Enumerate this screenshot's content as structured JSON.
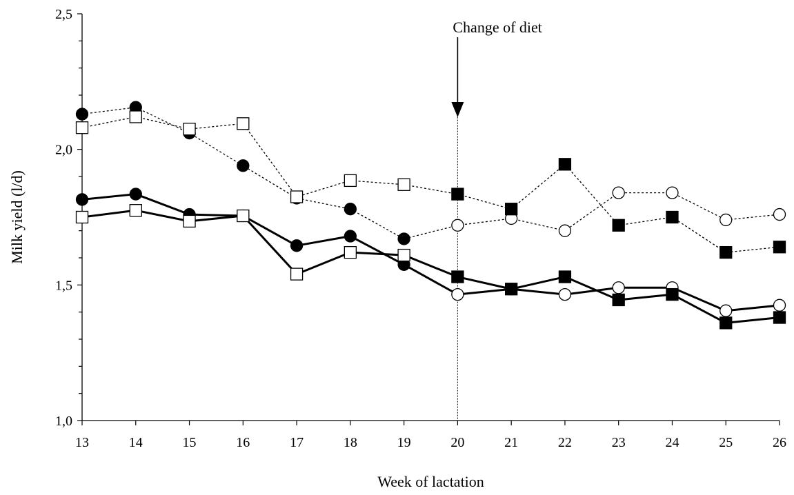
{
  "chart_data": {
    "type": "line",
    "title": "",
    "xlabel": "Week of lactation",
    "ylabel": "Milk yield (l/d)",
    "x": [
      13,
      14,
      15,
      16,
      17,
      18,
      19,
      20,
      21,
      22,
      23,
      24,
      25,
      26
    ],
    "xlim": [
      13,
      26
    ],
    "ylim": [
      1.0,
      2.5
    ],
    "y_ticks": [
      "1,0",
      "1,5",
      "2,0",
      "2,5"
    ],
    "x_ticks": [
      "13",
      "14",
      "15",
      "16",
      "17",
      "18",
      "19",
      "20",
      "21",
      "22",
      "23",
      "24",
      "25",
      "26"
    ],
    "grid": false,
    "legend": "none",
    "annotation": {
      "label": "Change of diet",
      "x": 20
    },
    "series": [
      {
        "line": "dotted",
        "x": [
          13,
          14,
          15,
          16,
          17,
          18,
          19,
          20,
          21,
          22,
          23,
          24,
          25,
          26
        ],
        "values": [
          2.13,
          2.155,
          2.06,
          1.94,
          1.82,
          1.78,
          1.67,
          1.72,
          1.745,
          1.7,
          1.84,
          1.84,
          1.74,
          1.76
        ],
        "markers": [
          "filled-circle",
          "filled-circle",
          "filled-circle",
          "filled-circle",
          "filled-circle",
          "filled-circle",
          "filled-circle",
          "open-circle",
          "open-circle",
          "open-circle",
          "open-circle",
          "open-circle",
          "open-circle",
          "open-circle"
        ]
      },
      {
        "line": "dotted",
        "x": [
          13,
          14,
          15,
          16,
          17,
          18,
          19,
          20,
          21,
          22,
          23,
          24,
          25,
          26
        ],
        "values": [
          2.08,
          2.12,
          2.075,
          2.095,
          1.825,
          1.885,
          1.87,
          1.835,
          1.78,
          1.945,
          1.72,
          1.75,
          1.62,
          1.64
        ],
        "markers": [
          "open-square",
          "open-square",
          "open-square",
          "open-square",
          "open-square",
          "open-square",
          "open-square",
          "filled-square",
          "filled-square",
          "filled-square",
          "filled-square",
          "filled-square",
          "filled-square",
          "filled-square"
        ]
      },
      {
        "line": "solid",
        "x": [
          13,
          14,
          15,
          16,
          17,
          18,
          19,
          20,
          21,
          22,
          23,
          24,
          25,
          26
        ],
        "values": [
          1.815,
          1.835,
          1.76,
          1.755,
          1.645,
          1.68,
          1.575,
          1.465,
          1.485,
          1.465,
          1.49,
          1.49,
          1.405,
          1.425
        ],
        "markers": [
          "filled-circle",
          "filled-circle",
          "filled-circle",
          "filled-circle",
          "filled-circle",
          "filled-circle",
          "filled-circle",
          "open-circle",
          "open-circle",
          "open-circle",
          "open-circle",
          "open-circle",
          "open-circle",
          "open-circle"
        ]
      },
      {
        "line": "solid",
        "x": [
          13,
          14,
          15,
          16,
          17,
          18,
          19,
          20,
          21,
          22,
          23,
          24,
          25,
          26
        ],
        "values": [
          1.75,
          1.775,
          1.735,
          1.755,
          1.54,
          1.62,
          1.61,
          1.53,
          1.485,
          1.53,
          1.445,
          1.465,
          1.36,
          1.38
        ],
        "markers": [
          "open-square",
          "open-square",
          "open-square",
          "open-square",
          "open-square",
          "open-square",
          "open-square",
          "filled-square",
          "filled-square",
          "filled-square",
          "filled-square",
          "filled-square",
          "filled-square",
          "filled-square"
        ]
      }
    ]
  }
}
